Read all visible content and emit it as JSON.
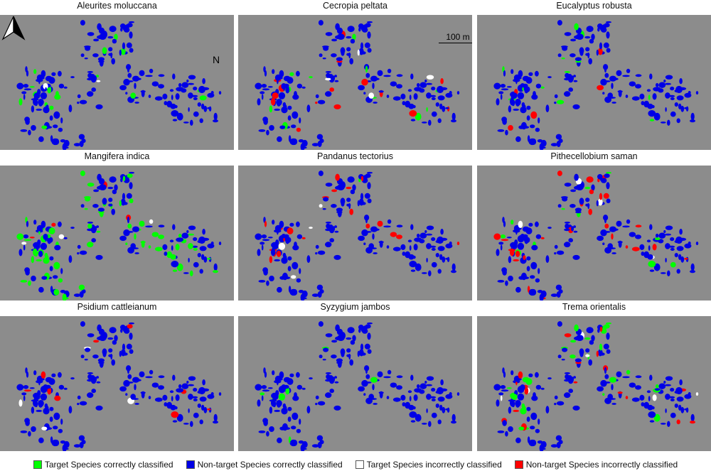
{
  "panels": [
    {
      "title": "Aleurites moluccana",
      "green": 18,
      "red": 0,
      "white": 2,
      "seed": 11
    },
    {
      "title": "Cecropia peltata",
      "green": 16,
      "red": 16,
      "white": 4,
      "seed": 23
    },
    {
      "title": "Eucalyptus robusta",
      "green": 12,
      "red": 6,
      "white": 0,
      "seed": 37
    },
    {
      "title": "Mangifera indica",
      "green": 85,
      "red": 4,
      "white": 3,
      "seed": 41
    },
    {
      "title": "Pandanus tectorius",
      "green": 3,
      "red": 20,
      "white": 4,
      "seed": 53
    },
    {
      "title": "Pithecellobium saman",
      "green": 12,
      "red": 32,
      "white": 4,
      "seed": 67
    },
    {
      "title": "Psidium cattleianum",
      "green": 0,
      "red": 9,
      "white": 4,
      "seed": 79
    },
    {
      "title": "Syzygium jambos",
      "green": 8,
      "red": 0,
      "white": 0,
      "seed": 83
    },
    {
      "title": "Trema orientalis",
      "green": 35,
      "red": 20,
      "white": 6,
      "seed": 97
    }
  ],
  "north_label": "N",
  "scale_label": "100 m",
  "colors": {
    "background": "#8c8c8c",
    "target_correct": "#00ff00",
    "nontarget_correct": "#0000e6",
    "target_incorrect": "#ffffff",
    "nontarget_incorrect": "#ff0000"
  },
  "legend": [
    {
      "label": "Target Species correctly classified",
      "color": "#00ff00"
    },
    {
      "label": "Non-target Species correctly classified",
      "color": "#0000e6"
    },
    {
      "label": "Target Species incorrectly classified",
      "color": "#ffffff"
    },
    {
      "label": "Non-target Species incorrectly classified",
      "color": "#ff0000"
    }
  ]
}
